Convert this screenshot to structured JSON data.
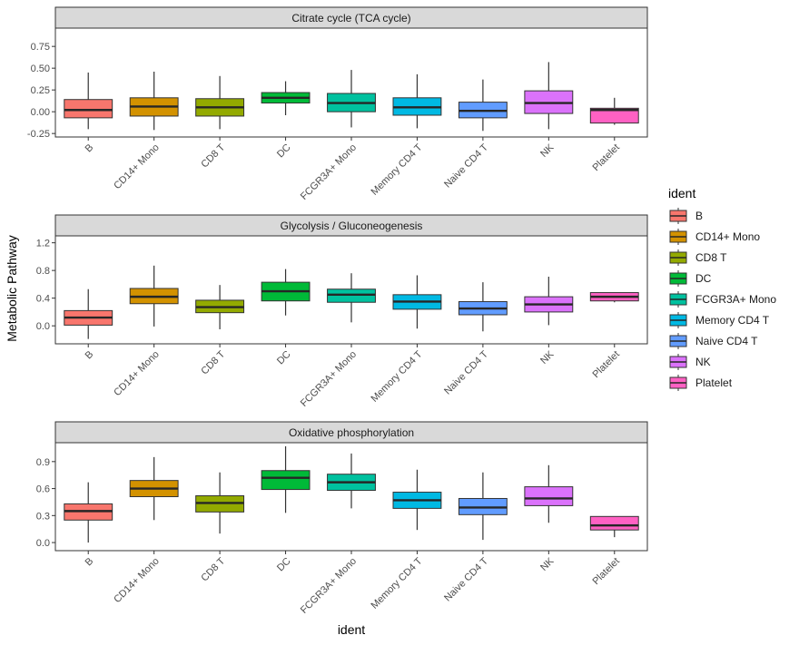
{
  "chart_data": {
    "type": "boxplot",
    "ylabel": "Metabolic Pathway",
    "xlabel": "ident",
    "legend": {
      "title": "ident",
      "position": "right"
    },
    "categories": [
      "B",
      "CD14+ Mono",
      "CD8 T",
      "DC",
      "FCGR3A+ Mono",
      "Memory CD4 T",
      "Naive CD4 T",
      "NK",
      "Platelet"
    ],
    "colors": [
      "#F8766D",
      "#D39200",
      "#93AA00",
      "#00BA38",
      "#00C19F",
      "#00B9E3",
      "#619CFF",
      "#DB72FB",
      "#FF61C3"
    ],
    "panels": [
      {
        "title": "Citrate cycle (TCA cycle)",
        "ylim": [
          -0.29,
          0.96
        ],
        "yticks": [
          -0.25,
          0.0,
          0.25,
          0.5,
          0.75
        ],
        "ytick_labels": [
          "-0.25",
          "0.00",
          "0.25",
          "0.50",
          "0.75"
        ],
        "boxes": [
          {
            "min": -0.2,
            "q1": -0.07,
            "median": 0.02,
            "q3": 0.14,
            "max": 0.45
          },
          {
            "min": -0.21,
            "q1": -0.05,
            "median": 0.06,
            "q3": 0.16,
            "max": 0.46
          },
          {
            "min": -0.2,
            "q1": -0.05,
            "median": 0.05,
            "q3": 0.15,
            "max": 0.41
          },
          {
            "min": -0.04,
            "q1": 0.1,
            "median": 0.16,
            "q3": 0.22,
            "max": 0.35
          },
          {
            "min": -0.18,
            "q1": 0.0,
            "median": 0.1,
            "q3": 0.21,
            "max": 0.48
          },
          {
            "min": -0.19,
            "q1": -0.04,
            "median": 0.05,
            "q3": 0.16,
            "max": 0.43
          },
          {
            "min": -0.22,
            "q1": -0.07,
            "median": 0.01,
            "q3": 0.11,
            "max": 0.37
          },
          {
            "min": -0.2,
            "q1": -0.02,
            "median": 0.1,
            "q3": 0.24,
            "max": 0.57
          },
          {
            "min": -0.15,
            "q1": -0.13,
            "median": 0.02,
            "q3": 0.04,
            "max": 0.16
          }
        ]
      },
      {
        "title": "Glycolysis / Gluconeogenesis",
        "ylim": [
          -0.26,
          1.3
        ],
        "yticks": [
          0.0,
          0.4,
          0.8,
          1.2
        ],
        "ytick_labels": [
          "0.0",
          "0.4",
          "0.8",
          "1.2"
        ],
        "boxes": [
          {
            "min": -0.19,
            "q1": 0.01,
            "median": 0.12,
            "q3": 0.22,
            "max": 0.53
          },
          {
            "min": -0.01,
            "q1": 0.32,
            "median": 0.42,
            "q3": 0.54,
            "max": 0.87
          },
          {
            "min": -0.05,
            "q1": 0.19,
            "median": 0.27,
            "q3": 0.37,
            "max": 0.59
          },
          {
            "min": 0.15,
            "q1": 0.36,
            "median": 0.5,
            "q3": 0.63,
            "max": 0.82
          },
          {
            "min": 0.05,
            "q1": 0.34,
            "median": 0.45,
            "q3": 0.53,
            "max": 0.76
          },
          {
            "min": -0.04,
            "q1": 0.24,
            "median": 0.35,
            "q3": 0.45,
            "max": 0.73
          },
          {
            "min": -0.08,
            "q1": 0.16,
            "median": 0.25,
            "q3": 0.35,
            "max": 0.63
          },
          {
            "min": 0.01,
            "q1": 0.2,
            "median": 0.31,
            "q3": 0.42,
            "max": 0.71
          },
          {
            "min": 0.34,
            "q1": 0.36,
            "median": 0.42,
            "q3": 0.48,
            "max": 0.48
          }
        ]
      },
      {
        "title": "Oxidative phosphorylation",
        "ylim": [
          -0.09,
          1.11
        ],
        "yticks": [
          0.0,
          0.3,
          0.6,
          0.9
        ],
        "ytick_labels": [
          "0.0",
          "0.3",
          "0.6",
          "0.9"
        ],
        "boxes": [
          {
            "min": 0.0,
            "q1": 0.25,
            "median": 0.35,
            "q3": 0.43,
            "max": 0.67
          },
          {
            "min": 0.25,
            "q1": 0.51,
            "median": 0.6,
            "q3": 0.69,
            "max": 0.95
          },
          {
            "min": 0.1,
            "q1": 0.34,
            "median": 0.44,
            "q3": 0.52,
            "max": 0.78
          },
          {
            "min": 0.33,
            "q1": 0.59,
            "median": 0.72,
            "q3": 0.8,
            "max": 1.07
          },
          {
            "min": 0.38,
            "q1": 0.58,
            "median": 0.67,
            "q3": 0.76,
            "max": 0.99
          },
          {
            "min": 0.14,
            "q1": 0.38,
            "median": 0.47,
            "q3": 0.56,
            "max": 0.81
          },
          {
            "min": 0.03,
            "q1": 0.31,
            "median": 0.39,
            "q3": 0.49,
            "max": 0.78
          },
          {
            "min": 0.22,
            "q1": 0.41,
            "median": 0.49,
            "q3": 0.62,
            "max": 0.86
          },
          {
            "min": 0.06,
            "q1": 0.14,
            "median": 0.19,
            "q3": 0.29,
            "max": 0.29
          }
        ]
      }
    ]
  }
}
